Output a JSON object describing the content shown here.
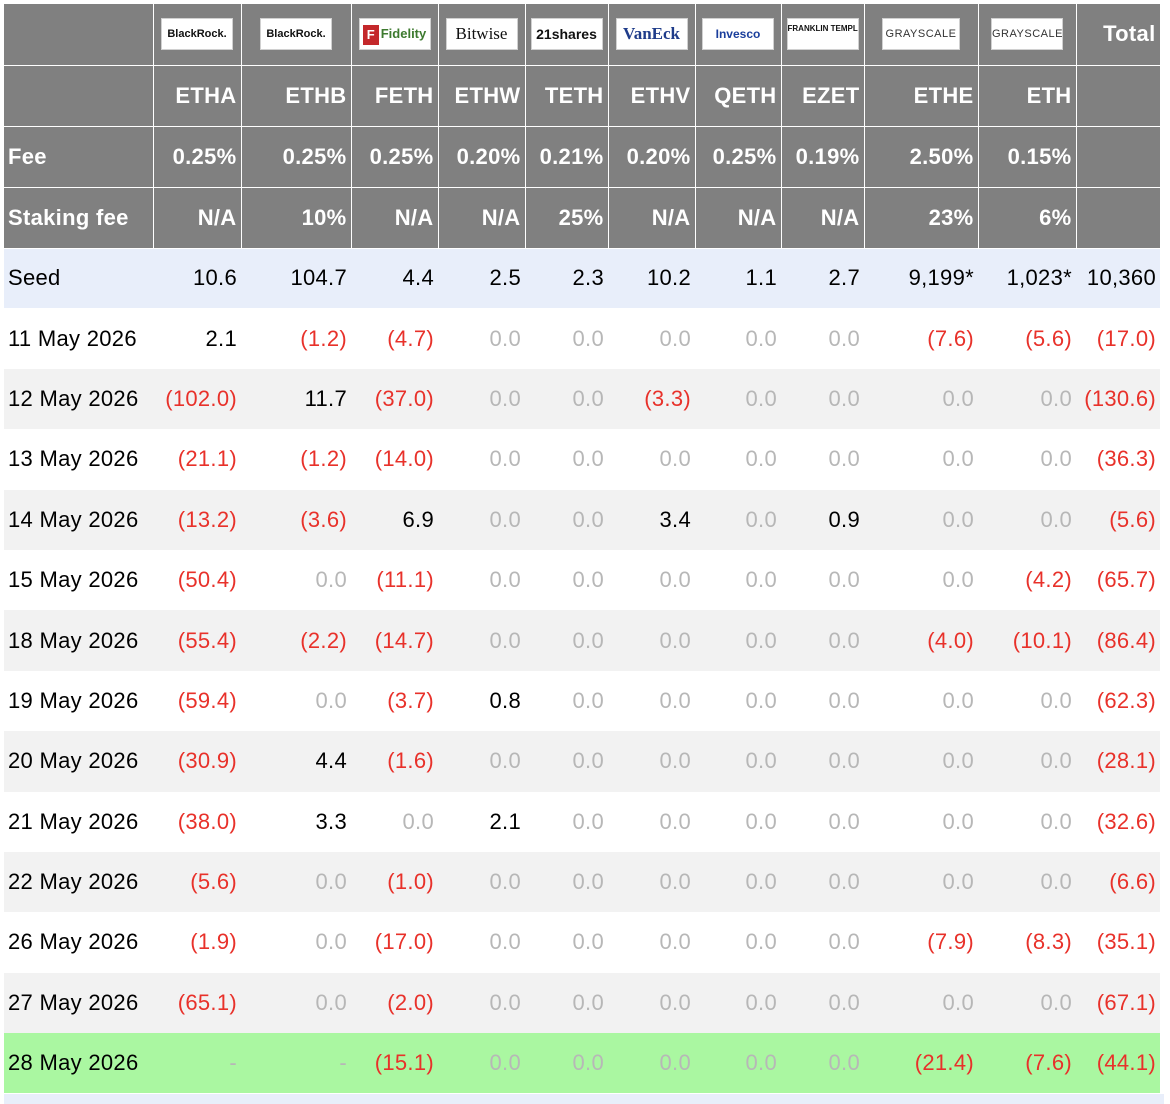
{
  "header": {
    "logos": [
      {
        "icon": "blackrock-logo",
        "text": "BlackRock."
      },
      {
        "icon": "blackrock-logo",
        "text": "BlackRock."
      },
      {
        "icon": "fidelity-logo",
        "text": "Fidelity"
      },
      {
        "icon": "bitwise-logo",
        "text": "Bitwise"
      },
      {
        "icon": "21shares-logo",
        "text": "21shares"
      },
      {
        "icon": "vaneck-logo",
        "text": "VanEck"
      },
      {
        "icon": "invesco-logo",
        "text": "Invesco"
      },
      {
        "icon": "franklin-templeton-logo",
        "text": "FRANKLIN TEMPLETON"
      },
      {
        "icon": "grayscale-logo",
        "text": "GRAYSCALE"
      },
      {
        "icon": "grayscale-logo",
        "text": "GRAYSCALE"
      }
    ],
    "total_label": "Total",
    "tickers": [
      "ETHA",
      "ETHB",
      "FETH",
      "ETHW",
      "TETH",
      "ETHV",
      "QETH",
      "EZET",
      "ETHE",
      "ETH"
    ],
    "fee_label": "Fee",
    "fees": [
      "0.25%",
      "0.25%",
      "0.25%",
      "0.20%",
      "0.21%",
      "0.20%",
      "0.25%",
      "0.19%",
      "2.50%",
      "0.15%"
    ],
    "staking_label": "Staking fee",
    "staking_fees": [
      "N/A",
      "10%",
      "N/A",
      "N/A",
      "25%",
      "N/A",
      "N/A",
      "N/A",
      "23%",
      "6%"
    ]
  },
  "rows": [
    {
      "date": "Seed",
      "values": [
        "10.6",
        "104.7",
        "4.4",
        "2.5",
        "2.3",
        "10.2",
        "1.1",
        "2.7",
        "9,199*",
        "1,023*"
      ],
      "total": "10,360"
    },
    {
      "date": "11 May 2026",
      "values": [
        "2.1",
        "(1.2)",
        "(4.7)",
        "0.0",
        "0.0",
        "0.0",
        "0.0",
        "0.0",
        "(7.6)",
        "(5.6)"
      ],
      "total": "(17.0)"
    },
    {
      "date": "12 May 2026",
      "values": [
        "(102.0)",
        "11.7",
        "(37.0)",
        "0.0",
        "0.0",
        "(3.3)",
        "0.0",
        "0.0",
        "0.0",
        "0.0"
      ],
      "total": "(130.6)"
    },
    {
      "date": "13 May 2026",
      "values": [
        "(21.1)",
        "(1.2)",
        "(14.0)",
        "0.0",
        "0.0",
        "0.0",
        "0.0",
        "0.0",
        "0.0",
        "0.0"
      ],
      "total": "(36.3)"
    },
    {
      "date": "14 May 2026",
      "values": [
        "(13.2)",
        "(3.6)",
        "6.9",
        "0.0",
        "0.0",
        "3.4",
        "0.0",
        "0.9",
        "0.0",
        "0.0"
      ],
      "total": "(5.6)"
    },
    {
      "date": "15 May 2026",
      "values": [
        "(50.4)",
        "0.0",
        "(11.1)",
        "0.0",
        "0.0",
        "0.0",
        "0.0",
        "0.0",
        "0.0",
        "(4.2)"
      ],
      "total": "(65.7)"
    },
    {
      "date": "18 May 2026",
      "values": [
        "(55.4)",
        "(2.2)",
        "(14.7)",
        "0.0",
        "0.0",
        "0.0",
        "0.0",
        "0.0",
        "(4.0)",
        "(10.1)"
      ],
      "total": "(86.4)"
    },
    {
      "date": "19 May 2026",
      "values": [
        "(59.4)",
        "0.0",
        "(3.7)",
        "0.8",
        "0.0",
        "0.0",
        "0.0",
        "0.0",
        "0.0",
        "0.0"
      ],
      "total": "(62.3)"
    },
    {
      "date": "20 May 2026",
      "values": [
        "(30.9)",
        "4.4",
        "(1.6)",
        "0.0",
        "0.0",
        "0.0",
        "0.0",
        "0.0",
        "0.0",
        "0.0"
      ],
      "total": "(28.1)"
    },
    {
      "date": "21 May 2026",
      "values": [
        "(38.0)",
        "3.3",
        "0.0",
        "2.1",
        "0.0",
        "0.0",
        "0.0",
        "0.0",
        "0.0",
        "0.0"
      ],
      "total": "(32.6)"
    },
    {
      "date": "22 May 2026",
      "values": [
        "(5.6)",
        "0.0",
        "(1.0)",
        "0.0",
        "0.0",
        "0.0",
        "0.0",
        "0.0",
        "0.0",
        "0.0"
      ],
      "total": "(6.6)"
    },
    {
      "date": "26 May 2026",
      "values": [
        "(1.9)",
        "0.0",
        "(17.0)",
        "0.0",
        "0.0",
        "0.0",
        "0.0",
        "0.0",
        "(7.9)",
        "(8.3)"
      ],
      "total": "(35.1)"
    },
    {
      "date": "27 May 2026",
      "values": [
        "(65.1)",
        "0.0",
        "(2.0)",
        "0.0",
        "0.0",
        "0.0",
        "0.0",
        "0.0",
        "0.0",
        "0.0"
      ],
      "total": "(67.1)"
    },
    {
      "date": "28 May 2026",
      "values": [
        "-",
        "-",
        "(15.1)",
        "0.0",
        "0.0",
        "0.0",
        "0.0",
        "0.0",
        "(21.4)",
        "(7.6)"
      ],
      "total": "(44.1)"
    }
  ],
  "colors": {
    "header_bg": "#808080",
    "negative": "#e8312a",
    "zero": "#b7b7b7",
    "seed_row": "#e8eefa",
    "latest_row": "#aaf7a1",
    "stripe": "#f2f2f2"
  }
}
